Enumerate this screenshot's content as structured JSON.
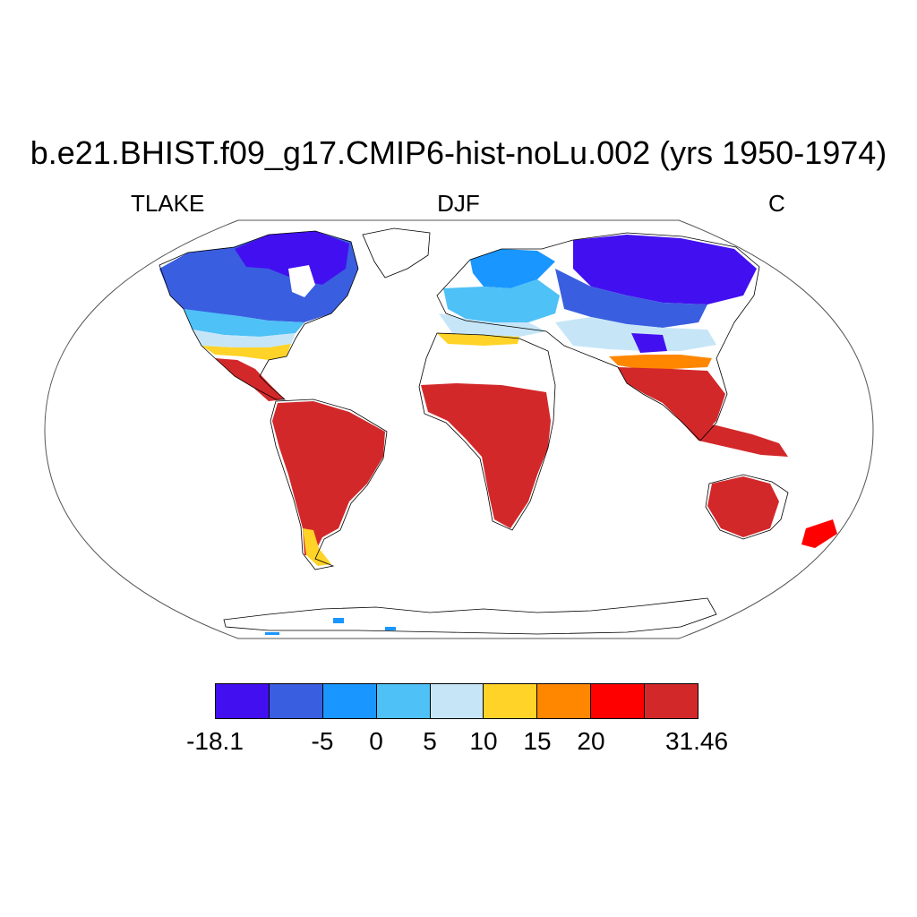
{
  "title": "b.e21.BHIST.f09_g17.CMIP6-hist-noLu.002 (yrs 1950-1974)",
  "left_label": "TLAKE",
  "center_label": "DJF",
  "right_label": "C",
  "colorbar": {
    "colors": [
      "#4210F0",
      "#3A5EE0",
      "#1996FF",
      "#4EC1F6",
      "#C6E6F8",
      "#FFD327",
      "#FF8700",
      "#FF0000",
      "#D3282A"
    ],
    "labels": [
      "-18.1",
      "-5",
      "0",
      "5",
      "10",
      "15",
      "20",
      "31.46"
    ]
  }
}
